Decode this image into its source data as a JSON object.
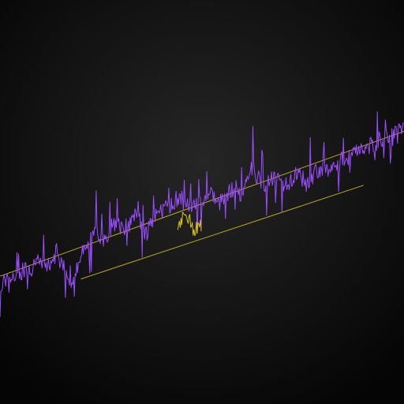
{
  "colors": {
    "background_center": "#262626",
    "background_edge": "#050505",
    "series_purple": "#9b4dff",
    "series_yellow": "#d9c21e",
    "trendline": "#d9c21e"
  },
  "chart_data": {
    "type": "line",
    "title": "",
    "xlabel": "",
    "ylabel": "",
    "grid": false,
    "legend": "none",
    "axes_visible": false,
    "xlim": [
      0,
      200
    ],
    "ylim": [
      0,
      100
    ],
    "x": [
      0,
      4,
      8,
      12,
      16,
      20,
      24,
      28,
      32,
      36,
      40,
      44,
      48,
      52,
      56,
      60,
      64,
      68,
      72,
      76,
      80,
      84,
      88,
      92,
      96,
      100,
      104,
      108,
      112,
      116,
      120,
      124,
      128,
      132,
      136,
      140,
      144,
      148,
      152,
      156,
      160,
      164,
      168,
      172,
      176,
      180,
      184,
      188,
      192,
      196,
      200
    ],
    "series": [
      {
        "values": [
          21.0,
          24.5,
          25.8,
          27.2,
          28.0,
          30.5,
          29.0,
          31.5,
          27.5,
          23.0,
          32.0,
          36.5,
          40.5,
          38.0,
          44.0,
          41.5,
          43.5,
          48.0,
          39.5,
          46.0,
          47.5,
          50.0,
          52.5,
          49.5,
          49.0,
          52.0,
          54.0,
          50.0,
          53.5,
          56.0,
          54.0,
          64.5,
          58.0,
          57.0,
          60.0,
          56.0,
          59.0,
          61.5,
          57.0,
          62.0,
          61.5,
          64.0,
          66.0,
          67.0,
          68.5,
          70.0,
          71.5,
          73.0,
          75.0,
          76.0,
          78.0
        ]
      },
      {
        "values": [
          null,
          null,
          null,
          null,
          null,
          null,
          null,
          null,
          null,
          null,
          null,
          null,
          null,
          null,
          null,
          null,
          null,
          null,
          null,
          null,
          null,
          null,
          44.0,
          48.0,
          40.0,
          43.5,
          null,
          null,
          null,
          null,
          null,
          null,
          null,
          null,
          null,
          null,
          null,
          null,
          null,
          null,
          null,
          null,
          null,
          null,
          null,
          null,
          null,
          null,
          null,
          null,
          null
        ]
      }
    ],
    "trendlines": [
      {
        "x": [
          0,
          200
        ],
        "y": [
          25.0,
          76.0
        ]
      },
      {
        "x": [
          40,
          180
        ],
        "y": [
          24.0,
          57.0
        ]
      }
    ]
  }
}
